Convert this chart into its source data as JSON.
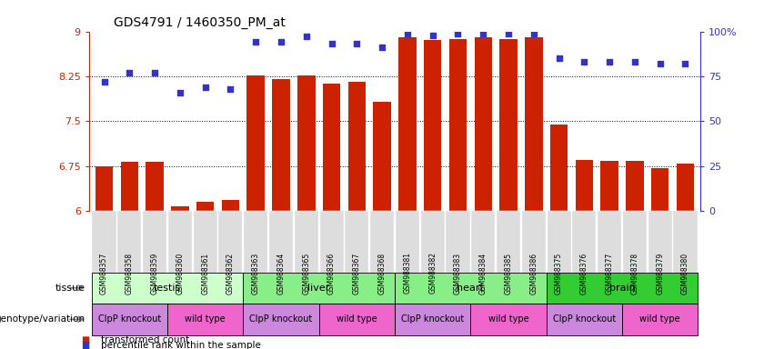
{
  "title": "GDS4791 / 1460350_PM_at",
  "samples": [
    "GSM988357",
    "GSM988358",
    "GSM988359",
    "GSM988360",
    "GSM988361",
    "GSM988362",
    "GSM988363",
    "GSM988364",
    "GSM988365",
    "GSM988366",
    "GSM988367",
    "GSM988368",
    "GSM988381",
    "GSM988382",
    "GSM988383",
    "GSM988384",
    "GSM988385",
    "GSM988386",
    "GSM988375",
    "GSM988376",
    "GSM988377",
    "GSM988378",
    "GSM988379",
    "GSM988380"
  ],
  "bar_values": [
    6.75,
    6.83,
    6.83,
    6.08,
    6.16,
    6.18,
    8.26,
    8.2,
    8.26,
    8.13,
    8.16,
    7.82,
    8.9,
    8.85,
    8.87,
    8.9,
    8.87,
    8.9,
    7.45,
    6.85,
    6.84,
    6.84,
    6.72,
    6.8
  ],
  "percentile_values": [
    72,
    77,
    77,
    66,
    69,
    68,
    94,
    94,
    97,
    93,
    93,
    91,
    99,
    98,
    99,
    99,
    99,
    99,
    85,
    83,
    83,
    83,
    82,
    82
  ],
  "ylim_left": [
    6.0,
    9.0
  ],
  "ylim_right": [
    0,
    100
  ],
  "yticks_left": [
    6.0,
    6.75,
    7.5,
    8.25,
    9.0
  ],
  "yticks_right": [
    0,
    25,
    50,
    75,
    100
  ],
  "ytick_labels_left": [
    "6",
    "6.75",
    "7.5",
    "8.25",
    "9"
  ],
  "ytick_labels_right": [
    "0",
    "25",
    "50",
    "75",
    "100%"
  ],
  "hlines": [
    6.75,
    7.5,
    8.25
  ],
  "bar_color": "#cc2200",
  "dot_color": "#3333cc",
  "tissue_groups": [
    {
      "label": "testis",
      "start": 0,
      "end": 6,
      "color": "#ccffcc"
    },
    {
      "label": "liver",
      "start": 6,
      "end": 12,
      "color": "#88ee88"
    },
    {
      "label": "heart",
      "start": 12,
      "end": 18,
      "color": "#88ee88"
    },
    {
      "label": "brain",
      "start": 18,
      "end": 24,
      "color": "#33cc33"
    }
  ],
  "genotype_groups": [
    {
      "label": "ClpP knockout",
      "start": 0,
      "end": 3,
      "color": "#cc88dd"
    },
    {
      "label": "wild type",
      "start": 3,
      "end": 6,
      "color": "#ee66cc"
    },
    {
      "label": "ClpP knockout",
      "start": 6,
      "end": 9,
      "color": "#cc88dd"
    },
    {
      "label": "wild type",
      "start": 9,
      "end": 12,
      "color": "#ee66cc"
    },
    {
      "label": "ClpP knockout",
      "start": 12,
      "end": 15,
      "color": "#cc88dd"
    },
    {
      "label": "wild type",
      "start": 15,
      "end": 18,
      "color": "#ee66cc"
    },
    {
      "label": "ClpP knockout",
      "start": 18,
      "end": 21,
      "color": "#cc88dd"
    },
    {
      "label": "wild type",
      "start": 21,
      "end": 24,
      "color": "#ee66cc"
    }
  ],
  "legend_items": [
    {
      "label": "transformed count",
      "color": "#cc2200",
      "marker": "s"
    },
    {
      "label": "percentile rank within the sample",
      "color": "#3333cc",
      "marker": "s"
    }
  ],
  "bg_color": "#ffffff",
  "grid_color": "#000000",
  "axis_color_left": "#cc2200",
  "axis_color_right": "#3333cc",
  "xtick_bg": "#dddddd"
}
